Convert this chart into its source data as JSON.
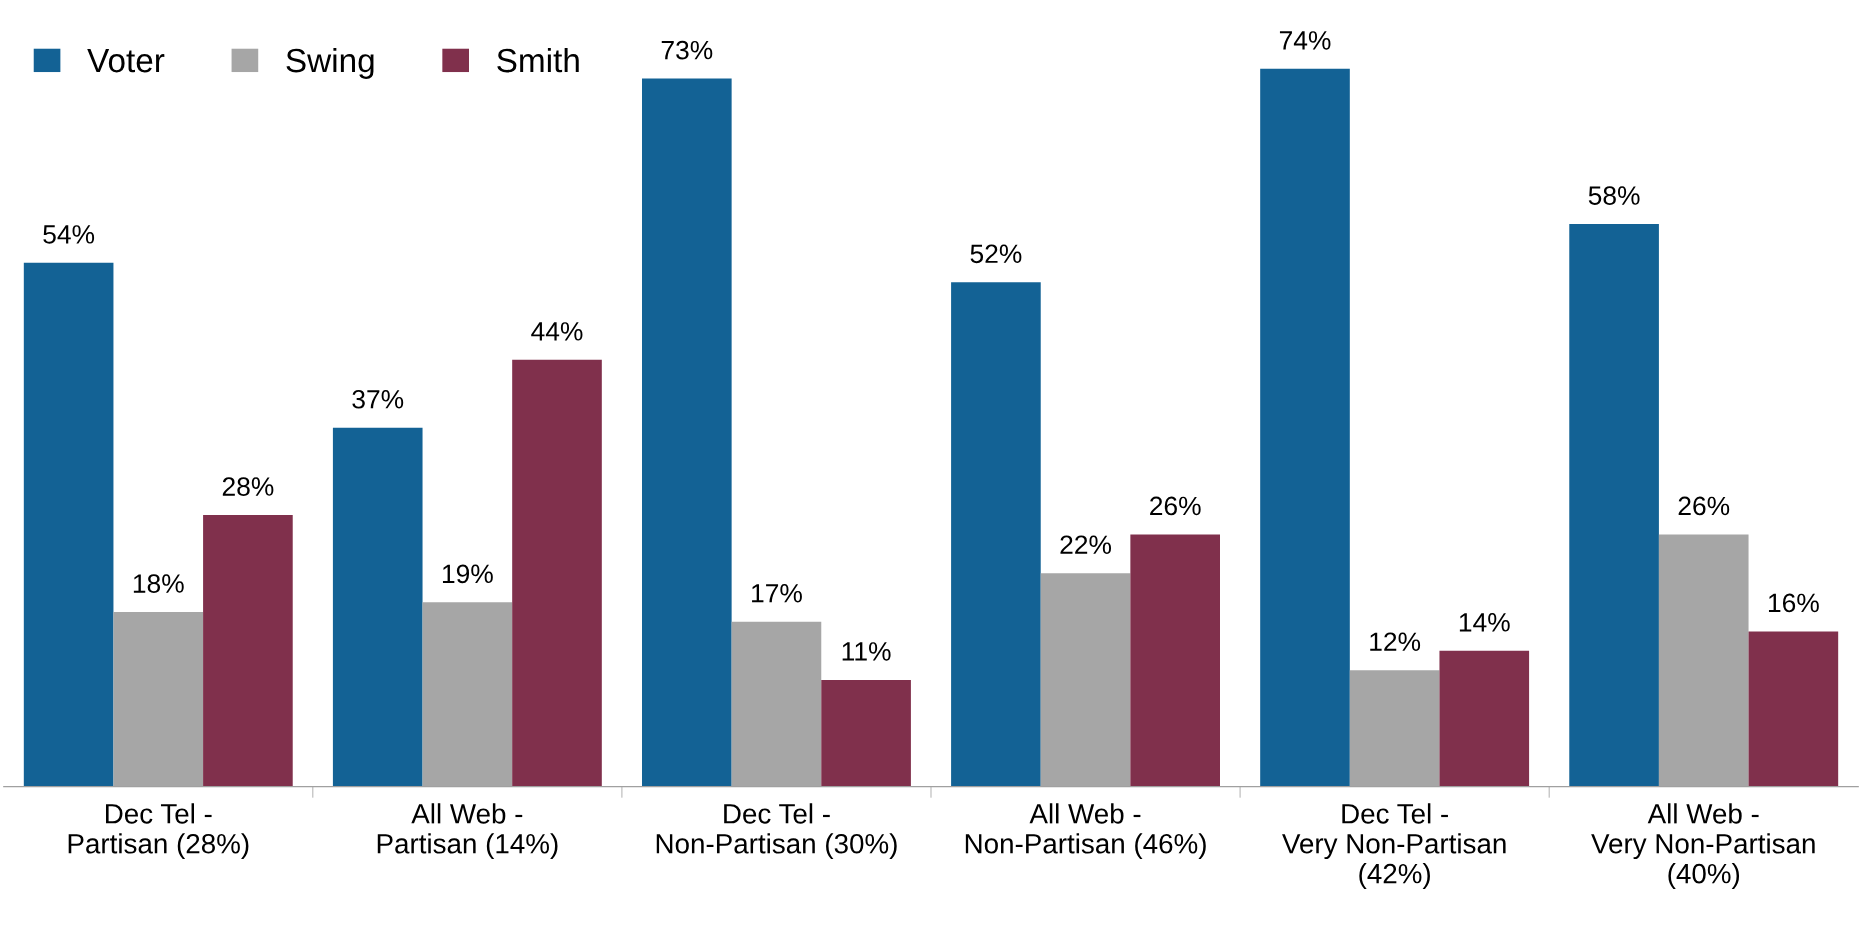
{
  "chart_data": {
    "type": "bar",
    "categories": [
      "Dec Tel -\nPartisan (28%)",
      "All Web -\nPartisan (14%)",
      "Dec Tel -\nNon-Partisan (30%)",
      "All Web -\nNon-Partisan (46%)",
      "Dec Tel -\nVery Non-Partisan\n(42%)",
      "All Web -\nVery Non-Partisan\n(40%)"
    ],
    "series": [
      {
        "name": "Voter",
        "color": "#136295",
        "values": [
          54,
          37,
          73,
          52,
          74,
          58
        ],
        "value_labels": [
          "54%",
          "37%",
          "73%",
          "52%",
          "74%",
          "58%"
        ]
      },
      {
        "name": "Swing",
        "color": "#a6a6a6",
        "values": [
          18,
          19,
          17,
          22,
          12,
          26
        ],
        "value_labels": [
          "18%",
          "19%",
          "17%",
          "22%",
          "12%",
          "26%"
        ]
      },
      {
        "name": "Smith",
        "color": "#80304c",
        "values": [
          28,
          44,
          11,
          26,
          14,
          16
        ],
        "value_labels": [
          "28%",
          "44%",
          "11%",
          "26%",
          "14%",
          "16%"
        ]
      }
    ],
    "tick_labels": "x",
    "legend": "top left",
    "grid": false
  }
}
